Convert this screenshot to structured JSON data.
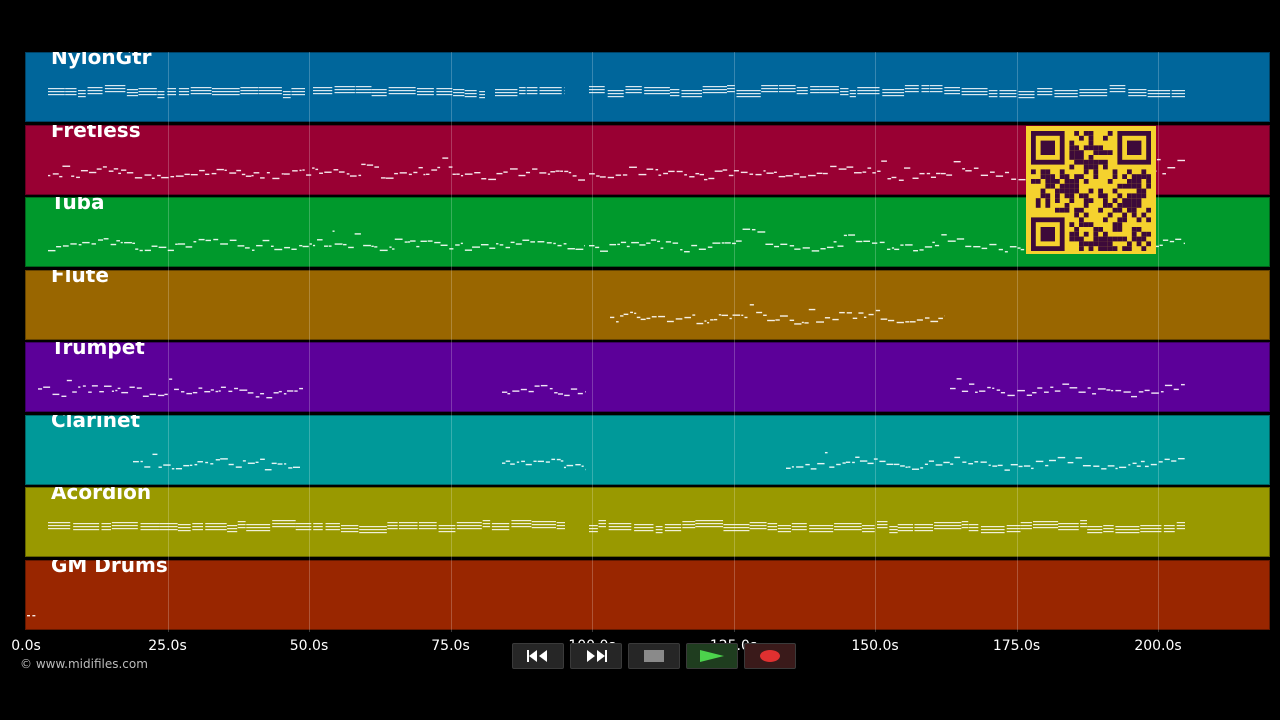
{
  "tracks": [
    {
      "name": "NylonGtr",
      "color": "#00669b",
      "style": "chords",
      "segments": [
        [
          48,
          305
        ],
        [
          313,
          485
        ],
        [
          495,
          565
        ],
        [
          589,
          1185
        ]
      ]
    },
    {
      "name": "Fretless",
      "color": "#990033",
      "style": "melody",
      "segments": [
        [
          48,
          585
        ],
        [
          589,
          1185
        ]
      ]
    },
    {
      "name": "Tuba",
      "color": "#00992c",
      "style": "melody",
      "segments": [
        [
          48,
          585
        ],
        [
          589,
          1185
        ]
      ]
    },
    {
      "name": "Flute",
      "color": "#996600",
      "style": "melody",
      "segments": [
        [
          610,
          945
        ]
      ]
    },
    {
      "name": "Trumpet",
      "color": "#5c0099",
      "style": "melody",
      "segments": [
        [
          38,
          303
        ],
        [
          502,
          586
        ],
        [
          950,
          1185
        ]
      ]
    },
    {
      "name": "Clarinet",
      "color": "#009999",
      "style": "melody",
      "segments": [
        [
          133,
          300
        ],
        [
          502,
          586
        ],
        [
          786,
          1185
        ]
      ]
    },
    {
      "name": "Acordion",
      "color": "#999900",
      "style": "chords",
      "segments": [
        [
          48,
          565
        ],
        [
          589,
          1185
        ]
      ]
    },
    {
      "name": "GM Drums",
      "color": "#992600",
      "style": "drums",
      "segments": [
        [
          27,
          37
        ]
      ]
    }
  ],
  "time_axis": {
    "ticks": [
      "0.0s",
      "25.0s",
      "50.0s",
      "75.0s",
      "100.0s",
      "125.0s",
      "150.0s",
      "175.0s",
      "200.0s"
    ]
  },
  "transport": {
    "buttons": [
      {
        "name": "rewind-button",
        "icon": "rewind-icon"
      },
      {
        "name": "fast-forward-button",
        "icon": "fast-forward-icon"
      },
      {
        "name": "stop-button",
        "icon": "stop-icon"
      },
      {
        "name": "play-button",
        "icon": "play-icon"
      },
      {
        "name": "record-button",
        "icon": "record-icon"
      }
    ]
  },
  "credit": "© www.midifiles.com",
  "colors": {
    "background": "#000000",
    "note": "#ffffff",
    "qr_bg": "#f5d22e",
    "qr_fg": "#3d0a3a"
  }
}
